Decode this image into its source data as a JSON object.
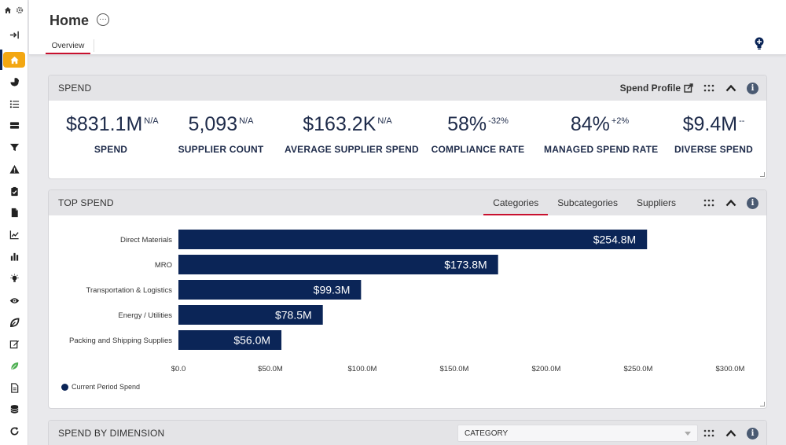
{
  "header": {
    "title": "Home",
    "more_label": "···",
    "tabs": [
      {
        "label": "Overview"
      }
    ]
  },
  "sidebar": {
    "items": [
      "expand-icon",
      "home-icon",
      "pie-chart-icon",
      "list-icon",
      "server-icon",
      "filter-icon",
      "alert-icon",
      "clipboard-check-icon",
      "document-icon",
      "line-chart-icon",
      "bar-chart-icon",
      "lightbulb-icon",
      "eye-icon",
      "leaf-outline-icon",
      "edit-icon",
      "leaf-icon",
      "file-icon",
      "database-icon",
      "refresh-icon"
    ]
  },
  "spend_panel": {
    "title": "SPEND",
    "profile_link": "Spend Profile",
    "info": "i",
    "kpis": [
      {
        "value": "$831.1M",
        "delta": "N/A",
        "label": "SPEND"
      },
      {
        "value": "5,093",
        "delta": "N/A",
        "label": "SUPPLIER COUNT"
      },
      {
        "value": "$163.2K",
        "delta": "N/A",
        "label": "AVERAGE SUPPLIER SPEND"
      },
      {
        "value": "58%",
        "delta": "-32%",
        "label": "COMPLIANCE RATE"
      },
      {
        "value": "84%",
        "delta": "+2%",
        "label": "MANAGED SPEND RATE"
      },
      {
        "value": "$9.4M",
        "delta": "--",
        "label": "DIVERSE SPEND"
      }
    ]
  },
  "top_spend_panel": {
    "title": "TOP SPEND",
    "info": "i",
    "tabs": [
      {
        "label": "Categories",
        "active": true
      },
      {
        "label": "Subcategories",
        "active": false
      },
      {
        "label": "Suppliers",
        "active": false
      }
    ],
    "legend": "Current Period Spend"
  },
  "dimension_panel": {
    "title": "SPEND BY DIMENSION",
    "info": "i",
    "select_value": "CATEGORY"
  },
  "colors": {
    "accent": "#c8102e",
    "bar": "#0b2557",
    "active_nav": "#f3a712"
  },
  "chart_data": {
    "type": "bar",
    "orientation": "horizontal",
    "categories": [
      "Direct Materials",
      "MRO",
      "Transportation & Logistics",
      "Energy / Utilities",
      "Packing and Shipping Supplies"
    ],
    "values": [
      254.8,
      173.8,
      99.3,
      78.5,
      56.0
    ],
    "value_labels": [
      "$254.8M",
      "$173.8M",
      "$99.3M",
      "$78.5M",
      "$56.0M"
    ],
    "xlim": [
      0,
      300
    ],
    "x_ticks": [
      0,
      50,
      100,
      150,
      200,
      250,
      300
    ],
    "x_tick_labels": [
      "$0.0",
      "$50.0M",
      "$100.0M",
      "$150.0M",
      "$200.0M",
      "$250.0M",
      "$300.0M"
    ],
    "series": [
      {
        "name": "Current Period Spend",
        "values": [
          254.8,
          173.8,
          99.3,
          78.5,
          56.0
        ]
      }
    ],
    "title": "",
    "xlabel": "",
    "ylabel": ""
  }
}
